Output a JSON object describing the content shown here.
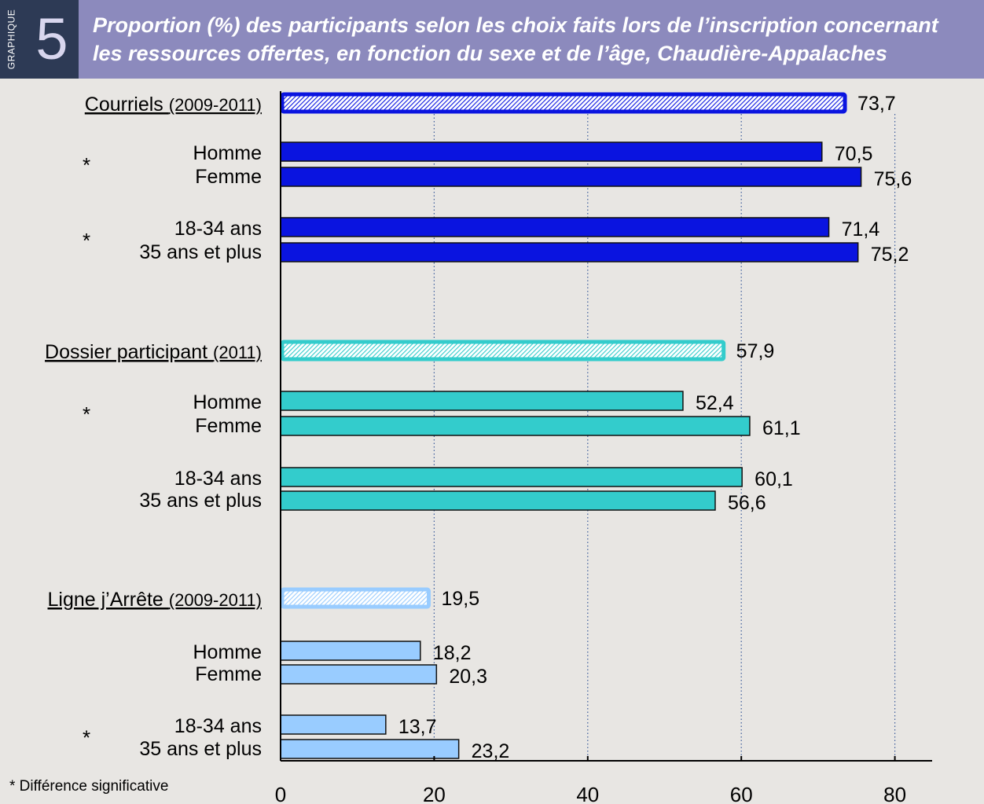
{
  "header": {
    "label": "GRAPHIQUE",
    "number": "5",
    "title_line1": "Proportion (%) des participants selon les choix faits lors de l’inscription concernant",
    "title_line2": "les ressources offertes, en fonction du sexe et de l’âge, Chaudière-Appalaches"
  },
  "footnote": "* Différence significative",
  "colors": {
    "header_bg": "#8c8abd",
    "header_tag_bg": "#2d3a55",
    "background": "#e8e6e3",
    "courriels": "#0a14e0",
    "dossier": "#33cccc",
    "ligne": "#99ccff"
  },
  "chart_data": {
    "type": "bar",
    "orientation": "horizontal",
    "xlim": [
      0,
      85
    ],
    "xticks": [
      0,
      20,
      40,
      60,
      80
    ],
    "grid": "vertical dotted",
    "groups": [
      {
        "label": "Courriels",
        "period": "(2009-2011)",
        "total": 73.7,
        "total_label": "73,7",
        "color": "#0a14e0",
        "subgroups": [
          {
            "significant": true,
            "bars": [
              {
                "label": "Homme",
                "value": 70.5,
                "value_label": "70,5"
              },
              {
                "label": "Femme",
                "value": 75.6,
                "value_label": "75,6"
              }
            ]
          },
          {
            "significant": true,
            "bars": [
              {
                "label": "18-34 ans",
                "value": 71.4,
                "value_label": "71,4"
              },
              {
                "label": "35 ans et plus",
                "value": 75.2,
                "value_label": "75,2"
              }
            ]
          }
        ]
      },
      {
        "label": "Dossier participant",
        "period": "(2011)",
        "total": 57.9,
        "total_label": "57,9",
        "color": "#33cccc",
        "subgroups": [
          {
            "significant": true,
            "bars": [
              {
                "label": "Homme",
                "value": 52.4,
                "value_label": "52,4"
              },
              {
                "label": "Femme",
                "value": 61.1,
                "value_label": "61,1"
              }
            ]
          },
          {
            "significant": false,
            "bars": [
              {
                "label": "18-34 ans",
                "value": 60.1,
                "value_label": "60,1"
              },
              {
                "label": "35 ans et plus",
                "value": 56.6,
                "value_label": "56,6"
              }
            ]
          }
        ]
      },
      {
        "label": "Ligne j’Arrête",
        "period": "(2009-2011)",
        "total": 19.5,
        "total_label": "19,5",
        "color": "#99ccff",
        "subgroups": [
          {
            "significant": false,
            "bars": [
              {
                "label": "Homme",
                "value": 18.2,
                "value_label": "18,2"
              },
              {
                "label": "Femme",
                "value": 20.3,
                "value_label": "20,3"
              }
            ]
          },
          {
            "significant": true,
            "bars": [
              {
                "label": "18-34 ans",
                "value": 13.7,
                "value_label": "13,7"
              },
              {
                "label": "35 ans et plus",
                "value": 23.2,
                "value_label": "23,2"
              }
            ]
          }
        ]
      }
    ]
  }
}
